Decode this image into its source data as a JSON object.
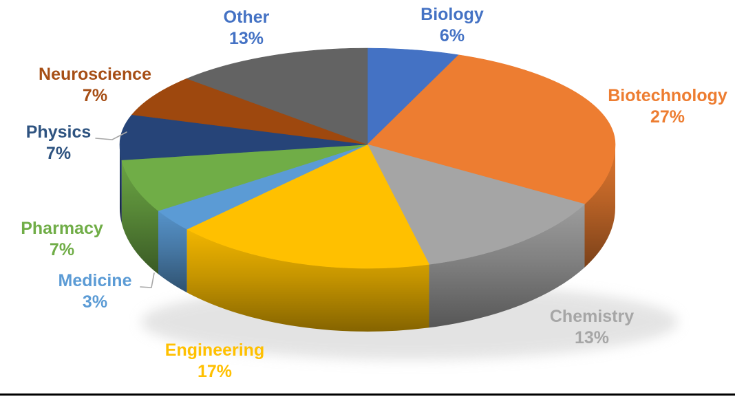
{
  "chart_data": {
    "type": "pie",
    "style": "3d",
    "title": "",
    "legend": "none",
    "direction": "clockwise",
    "start_angle_deg": 0,
    "data_label_format": "category name + percentage, outside end",
    "slices": [
      {
        "label": "Biology",
        "value": 6,
        "pct_label": "6%",
        "color": "#4472C4",
        "label_color": "#4472C4"
      },
      {
        "label": "Biotechnology",
        "value": 27,
        "pct_label": "27%",
        "color": "#ED7D31",
        "label_color": "#ED7D31"
      },
      {
        "label": "Chemistry",
        "value": 13,
        "pct_label": "13%",
        "color": "#A5A5A5",
        "label_color": "#A6A6A6"
      },
      {
        "label": "Engineering",
        "value": 17,
        "pct_label": "17%",
        "color": "#FFC000",
        "label_color": "#FFC000"
      },
      {
        "label": "Medicine",
        "value": 3,
        "pct_label": "3%",
        "color": "#5B9BD5",
        "label_color": "#5B9BD5"
      },
      {
        "label": "Pharmacy",
        "value": 7,
        "pct_label": "7%",
        "color": "#70AD47",
        "label_color": "#70AD47"
      },
      {
        "label": "Physics",
        "value": 7,
        "pct_label": "7%",
        "color": "#264478",
        "label_color": "#2E5380"
      },
      {
        "label": "Neuroscience",
        "value": 7,
        "pct_label": "7%",
        "color": "#9E480E",
        "label_color": "#A64E15"
      },
      {
        "label": "Other",
        "value": 13,
        "pct_label": "13%",
        "color": "#636363",
        "label_color": "#4472C4"
      }
    ]
  },
  "canvas": {
    "background": "#FFFFFF",
    "bottom_rule_color": "#000000",
    "leader_line_color": "#A6A6A6",
    "shadow_color": "#C9C9C9"
  }
}
